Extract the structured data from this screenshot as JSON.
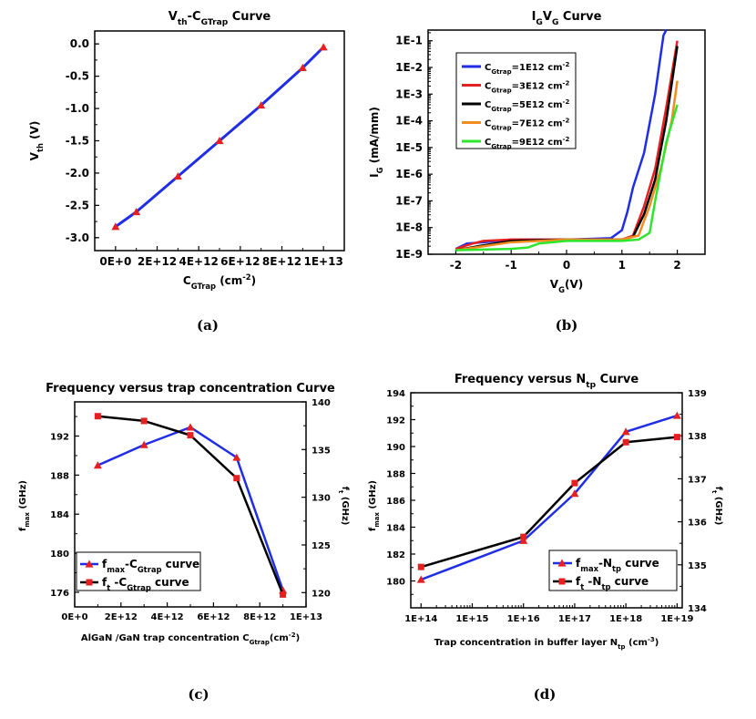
{
  "chart_data": [
    {
      "id": "a",
      "type": "line",
      "panel_label": "(a)",
      "title": "V",
      "title_sub": "th",
      "title_mid": "-C",
      "title_sub2": "GTrap",
      "title_end": " Curve",
      "xlabel": "C",
      "xlabel_sub": "GTrap",
      "xlabel_end": " (cm",
      "xlabel_sup": "-2",
      "xlabel_close": ")",
      "ylabel": "V",
      "ylabel_sub": "th",
      "ylabel_end": " (V)",
      "xlim": [
        -1000000000000.0,
        11000000000000.0
      ],
      "ylim": [
        -3.2,
        0.2
      ],
      "xticks": [
        0,
        2000000000000.0,
        4000000000000.0,
        6000000000000.0,
        8000000000000.0,
        10000000000000.0
      ],
      "xtick_labels": [
        "0E+0",
        "2E+12",
        "4E+12",
        "6E+12",
        "8E+12",
        "1E+13"
      ],
      "yticks": [
        0.0,
        -0.5,
        -1.0,
        -1.5,
        -2.0,
        -2.5,
        -3.0
      ],
      "ytick_labels": [
        "0.0",
        "-0.5",
        "-1.0",
        "-1.5",
        "-2.0",
        "-2.5",
        "-3.0"
      ],
      "series": [
        {
          "x": [
            0,
            1000000000000.0,
            3000000000000.0,
            5000000000000.0,
            7000000000000.0,
            9000000000000.0,
            10000000000000.0
          ],
          "y": [
            -2.83,
            -2.6,
            -2.05,
            -1.5,
            -0.95,
            -0.37,
            -0.05
          ],
          "line_color": "#1f2ee6",
          "marker_color": "#e62020",
          "marker": "triangle"
        }
      ]
    },
    {
      "id": "b",
      "type": "line",
      "panel_label": "(b)",
      "title": "I",
      "title_sub": "G",
      "title_mid": "V",
      "title_sub2": "G",
      "title_end": " Curve",
      "xlabel": "V",
      "xlabel_sub": "G",
      "xlabel_end": "(V)",
      "ylabel": "I",
      "ylabel_sub": "G",
      "ylabel_end": " (mA/mm)",
      "log_y": true,
      "xlim": [
        -2.5,
        2.5
      ],
      "ylim_exp": [
        -9,
        -0.6
      ],
      "xticks": [
        -2,
        -1,
        0,
        1,
        2
      ],
      "xtick_labels": [
        "-2",
        "-1",
        "0",
        "1",
        "2"
      ],
      "ytick_exps": [
        -9,
        -8,
        -7,
        -6,
        -5,
        -4,
        -3,
        -2,
        -1
      ],
      "ytick_labels": [
        "1E-9",
        "1E-8",
        "1E-7",
        "1E-6",
        "1E-5",
        "1E-4",
        "1E-3",
        "1E-2",
        "1E-1"
      ],
      "legend_position": "top-left",
      "series": [
        {
          "name_pre": "C",
          "name_sub": "Gtrap",
          "name_mid": "=1E12 cm",
          "name_sup": "-2",
          "color": "#1f2ee6",
          "x": [
            -2.0,
            -1.8,
            -1.5,
            -1.0,
            0.0,
            0.8,
            1.0,
            1.1,
            1.2,
            1.4,
            1.6,
            1.75,
            1.8
          ],
          "y_exp": [
            -8.8,
            -8.6,
            -8.55,
            -8.45,
            -8.45,
            -8.4,
            -8.1,
            -7.4,
            -6.5,
            -5.2,
            -3.0,
            -0.8,
            -0.6
          ]
        },
        {
          "name_pre": "C",
          "name_sub": "Gtrap",
          "name_mid": "=3E12 cm",
          "name_sup": "-2",
          "color": "#e62020",
          "x": [
            -2.0,
            -1.7,
            -1.5,
            -1.0,
            0.0,
            1.0,
            1.2,
            1.4,
            1.6,
            1.8,
            2.0
          ],
          "y_exp": [
            -8.8,
            -8.6,
            -8.5,
            -8.45,
            -8.45,
            -8.45,
            -8.3,
            -7.2,
            -5.8,
            -3.5,
            -1.0
          ]
        },
        {
          "name_pre": "C",
          "name_sub": "Gtrap",
          "name_mid": "=5E12 cm",
          "name_sup": "-2",
          "color": "#000000",
          "x": [
            -2.0,
            -1.6,
            -1.0,
            0.0,
            1.0,
            1.2,
            1.4,
            1.6,
            1.8,
            2.0
          ],
          "y_exp": [
            -8.85,
            -8.7,
            -8.5,
            -8.45,
            -8.45,
            -8.35,
            -7.5,
            -6.2,
            -4.0,
            -1.2
          ]
        },
        {
          "name_pre": "C",
          "name_sub": "Gtrap",
          "name_mid": "=7E12 cm",
          "name_sup": "-2",
          "color": "#f28c1e",
          "x": [
            -2.0,
            -1.5,
            -1.0,
            0.0,
            1.0,
            1.3,
            1.5,
            1.7,
            1.9,
            2.0
          ],
          "y_exp": [
            -8.85,
            -8.7,
            -8.55,
            -8.45,
            -8.45,
            -8.3,
            -7.2,
            -5.8,
            -4.0,
            -2.5
          ]
        },
        {
          "name_pre": "C",
          "name_sub": "Gtrap",
          "name_mid": "=9E12 cm",
          "name_sup": "-2",
          "color": "#2ee62e",
          "x": [
            -2.0,
            -1.0,
            -0.7,
            -0.5,
            0.0,
            1.0,
            1.3,
            1.5,
            1.6,
            1.8,
            2.0
          ],
          "y_exp": [
            -8.85,
            -8.8,
            -8.75,
            -8.6,
            -8.5,
            -8.5,
            -8.45,
            -8.2,
            -7.0,
            -4.8,
            -3.4
          ]
        }
      ]
    },
    {
      "id": "c",
      "type": "line",
      "panel_label": "(c)",
      "title": "Frequency versus trap concentration Curve",
      "xlabel": "AlGaN /GaN trap concentration C",
      "xlabel_sub": "Gtrap",
      "xlabel_end": "(cm",
      "xlabel_sup": "-2",
      "xlabel_close": ")",
      "ylabel": "f",
      "ylabel_sub": "max",
      "ylabel_end": " (GHz)",
      "y2label": "f",
      "y2label_sub": "t",
      "y2label_end": " (GHz)",
      "xlim": [
        0,
        10000000000000.0
      ],
      "ylim": [
        174.5,
        195.5
      ],
      "y2lim": [
        118.5,
        140
      ],
      "xticks": [
        0,
        2000000000000.0,
        4000000000000.0,
        6000000000000.0,
        8000000000000.0,
        10000000000000.0
      ],
      "xtick_labels": [
        "0E+0",
        "2E+12",
        "4E+12",
        "6E+12",
        "8E+12",
        "1E+13"
      ],
      "yticks": [
        176,
        180,
        184,
        188,
        192
      ],
      "ytick_labels": [
        "176",
        "180",
        "184",
        "188",
        "192"
      ],
      "y2ticks": [
        120,
        125,
        130,
        135,
        140
      ],
      "y2tick_labels": [
        "120",
        "125",
        "130",
        "135",
        "140"
      ],
      "legend_position": "bottom-left",
      "series": [
        {
          "name_pre": "f",
          "name_sub": "max",
          "name_mid": "-C",
          "name_sub2": "Gtrap",
          "name_end": " curve",
          "axis": "left",
          "color": "#1f2ee6",
          "marker_color": "#e62020",
          "marker": "triangle",
          "x": [
            1000000000000.0,
            3000000000000.0,
            5000000000000.0,
            7000000000000.0,
            9000000000000.0
          ],
          "y": [
            189.0,
            191.1,
            192.9,
            189.8,
            176.2
          ]
        },
        {
          "name_pre": "f",
          "name_sub": "t",
          "name_mid": " -C",
          "name_sub2": "Gtrap",
          "name_end": " curve",
          "axis": "right",
          "color": "#000000",
          "marker_color": "#e62020",
          "marker": "square",
          "x": [
            1000000000000.0,
            3000000000000.0,
            5000000000000.0,
            7000000000000.0,
            9000000000000.0
          ],
          "y": [
            138.5,
            138.0,
            136.5,
            132.0,
            119.8
          ]
        }
      ]
    },
    {
      "id": "d",
      "type": "line",
      "panel_label": "(d)",
      "title": "Frequency versus N",
      "title_sub": "tp",
      "title_end": " Curve",
      "xlabel": "Trap concentration in buffer layer N",
      "xlabel_sub": "tp",
      "xlabel_end": " (cm",
      "xlabel_sup": "-3",
      "xlabel_close": ")",
      "ylabel": "f",
      "ylabel_sub": "max",
      "ylabel_end": " (GHz)",
      "y2label": "f",
      "y2label_sub": "t",
      "y2label_end": " (GHz)",
      "log_x": true,
      "xlim_exp": [
        13.8,
        19.1
      ],
      "ylim": [
        178,
        194
      ],
      "y2lim": [
        134,
        139
      ],
      "xtick_exps": [
        14,
        15,
        16,
        17,
        18,
        19
      ],
      "xtick_labels": [
        "1E+14",
        "1E+15",
        "1E+16",
        "1E+17",
        "1E+18",
        "1E+19"
      ],
      "yticks": [
        180,
        182,
        184,
        186,
        188,
        190,
        192,
        194
      ],
      "ytick_labels": [
        "180",
        "182",
        "184",
        "186",
        "188",
        "190",
        "192",
        "194"
      ],
      "y2ticks": [
        134,
        135,
        136,
        137,
        138,
        139
      ],
      "y2tick_labels": [
        "134",
        "135",
        "136",
        "137",
        "138",
        "139"
      ],
      "legend_position": "bottom-right",
      "series": [
        {
          "name_pre": "f",
          "name_sub": "max",
          "name_mid": "-N",
          "name_sub2": "tp",
          "name_end": " curve",
          "axis": "left",
          "color": "#1f2ee6",
          "marker_color": "#e62020",
          "marker": "triangle",
          "x_exp": [
            14,
            16,
            17,
            18,
            19
          ],
          "y": [
            180.1,
            183.0,
            186.5,
            191.1,
            192.3
          ]
        },
        {
          "name_pre": "f",
          "name_sub": "t",
          "name_mid": " -N",
          "name_sub2": "tp",
          "name_end": " curve",
          "axis": "right",
          "color": "#000000",
          "marker_color": "#e62020",
          "marker": "square",
          "x_exp": [
            14,
            16,
            17,
            18,
            19
          ],
          "y": [
            134.95,
            135.65,
            136.9,
            137.85,
            137.97
          ]
        }
      ]
    }
  ]
}
